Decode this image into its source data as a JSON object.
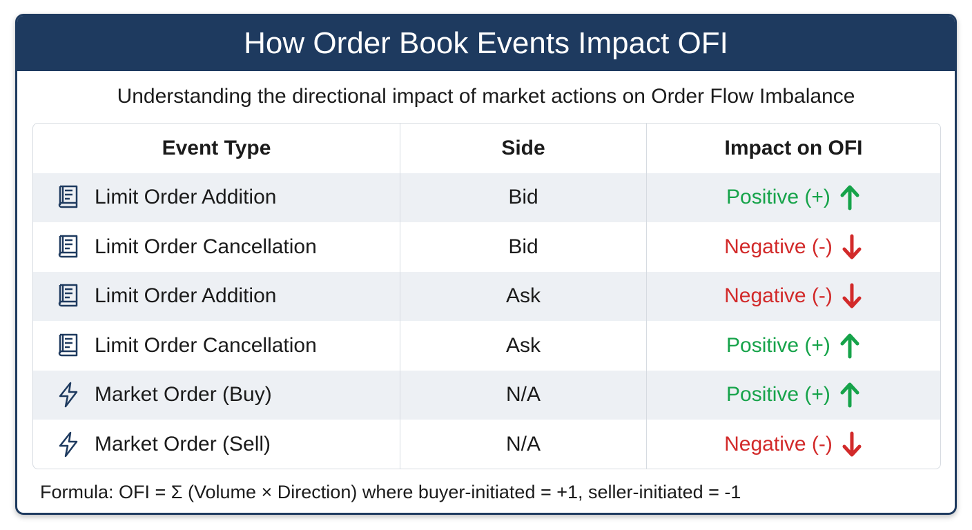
{
  "header": {
    "title": "How Order Book Events Impact OFI"
  },
  "subtitle": "Understanding the directional impact of market actions on Order Flow Imbalance",
  "table": {
    "columns": [
      "Event Type",
      "Side",
      "Impact on OFI"
    ],
    "rows": [
      [
        "Limit Order Addition",
        "Bid",
        "Positive (+)"
      ],
      [
        "Limit Order Cancellation",
        "Bid",
        "Negative (-)"
      ],
      [
        "Limit Order Addition",
        "Ask",
        "Negative (-)"
      ],
      [
        "Limit Order Cancellation",
        "Ask",
        "Positive (+)"
      ],
      [
        "Market Order (Buy)",
        "N/A",
        "Positive (+)"
      ],
      [
        "Market Order (Sell)",
        "N/A",
        "Negative (-)"
      ]
    ]
  },
  "footer": {
    "formula": "Formula: OFI = Σ (Volume × Direction) where buyer-initiated = +1, seller-initiated = -1"
  }
}
